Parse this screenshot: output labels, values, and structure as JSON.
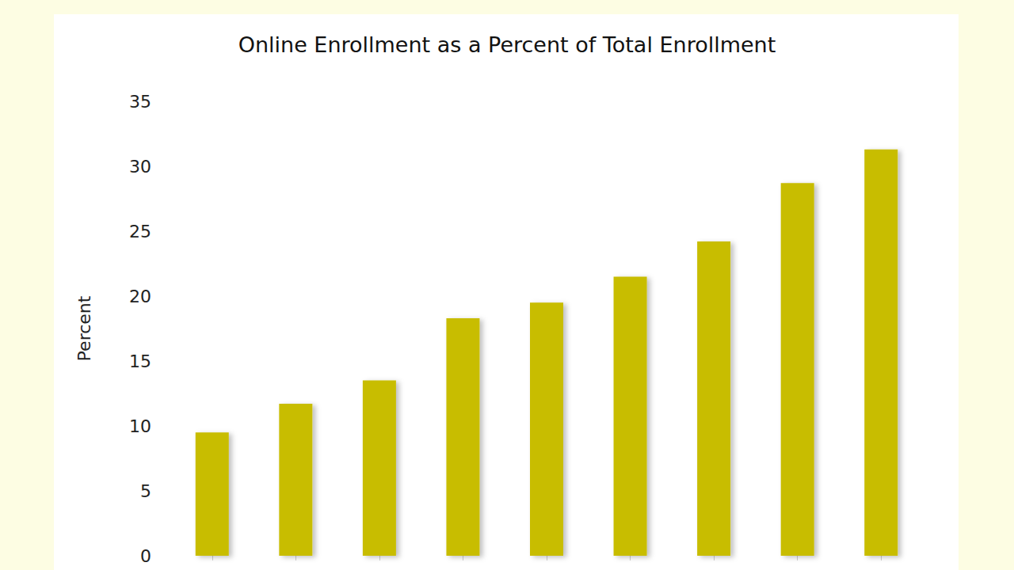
{
  "chart_data": {
    "type": "bar",
    "title": "Online Enrollment as a Percent of Total Enrollment",
    "y_label": "Percent",
    "categories": [
      null,
      null,
      null,
      null,
      null,
      null,
      null,
      null,
      null
    ],
    "values": [
      9.5,
      11.7,
      13.5,
      18.3,
      19.5,
      21.5,
      24.2,
      28.7,
      31.3
    ],
    "color": "#c8bd00",
    "ylim": [
      0,
      35
    ],
    "yticks": [
      0,
      5,
      10,
      15,
      20,
      25,
      30,
      35
    ],
    "grid": false
  }
}
